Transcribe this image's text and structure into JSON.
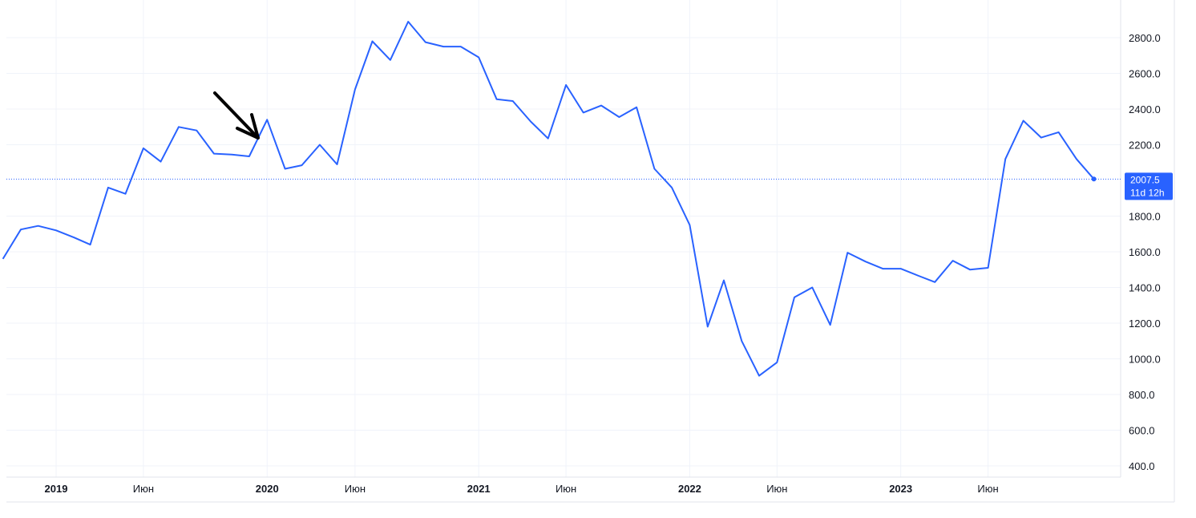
{
  "colors": {
    "line": "#2962ff",
    "grid": "#f0f3fa",
    "badge": "#2962ff",
    "text": "#131722",
    "arrow": "#000000"
  },
  "chart_data": {
    "type": "line",
    "grid": true,
    "ylim": [
      300,
      2950
    ],
    "y_ticks": [
      400,
      600,
      800,
      1000,
      1200,
      1400,
      1600,
      1800,
      2200,
      2400,
      2600,
      2800
    ],
    "y_tick_labels": [
      "400.0",
      "600.0",
      "800.0",
      "1000.0",
      "1200.0",
      "1400.0",
      "1600.0",
      "1800.0",
      "2200.0",
      "2400.0",
      "2600.0",
      "2800.0"
    ],
    "x_ticks": [
      {
        "date": "2019-01-01",
        "label": "2019",
        "year": true
      },
      {
        "date": "2019-06-01",
        "label": "Июн",
        "year": false
      },
      {
        "date": "2020-01-01",
        "label": "2020",
        "year": true
      },
      {
        "date": "2020-06-01",
        "label": "Июн",
        "year": false
      },
      {
        "date": "2021-01-01",
        "label": "2021",
        "year": true
      },
      {
        "date": "2021-06-01",
        "label": "Июн",
        "year": false
      },
      {
        "date": "2022-01-01",
        "label": "2022",
        "year": true
      },
      {
        "date": "2022-06-01",
        "label": "Июн",
        "year": false
      },
      {
        "date": "2023-01-01",
        "label": "2023",
        "year": true
      },
      {
        "date": "2023-06-01",
        "label": "Июн",
        "year": false
      }
    ],
    "current_price": {
      "value": 2007.5,
      "label": "2007.5",
      "countdown": "11d 12h"
    },
    "annotation": {
      "type": "arrow",
      "points_to_date": "2019-12-01",
      "direction": "down-right"
    },
    "series": [
      {
        "x": [
          "2018-10-01",
          "2018-11-01",
          "2018-12-01",
          "2019-01-01",
          "2019-02-01",
          "2019-03-01",
          "2019-04-01",
          "2019-05-01",
          "2019-06-01",
          "2019-07-01",
          "2019-08-01",
          "2019-09-01",
          "2019-10-01",
          "2019-11-01",
          "2019-12-01",
          "2020-01-01",
          "2020-02-01",
          "2020-03-01",
          "2020-04-01",
          "2020-05-01",
          "2020-06-01",
          "2020-07-01",
          "2020-08-01",
          "2020-09-01",
          "2020-10-01",
          "2020-11-01",
          "2020-12-01",
          "2021-01-01",
          "2021-02-01",
          "2021-03-01",
          "2021-04-01",
          "2021-05-01",
          "2021-06-01",
          "2021-07-01",
          "2021-08-01",
          "2021-09-01",
          "2021-10-01",
          "2021-11-01",
          "2021-12-01",
          "2022-01-01",
          "2022-02-01",
          "2022-03-01",
          "2022-04-01",
          "2022-05-01",
          "2022-06-01",
          "2022-07-01",
          "2022-08-01",
          "2022-09-01",
          "2022-10-01",
          "2022-11-01",
          "2022-12-01",
          "2023-01-01",
          "2023-02-01",
          "2023-03-01",
          "2023-04-01",
          "2023-05-01",
          "2023-06-01",
          "2023-07-01",
          "2023-08-01",
          "2023-09-01",
          "2023-10-01",
          "2023-11-01",
          "2023-12-01"
        ],
        "values": [
          1560,
          1725,
          1745,
          1720,
          1680,
          1640,
          1960,
          1925,
          2180,
          2105,
          2300,
          2280,
          2150,
          2145,
          2135,
          2340,
          2065,
          2085,
          2200,
          2090,
          2510,
          2780,
          2675,
          2890,
          2775,
          2750,
          2750,
          2690,
          2455,
          2445,
          2330,
          2235,
          2535,
          2380,
          2420,
          2355,
          2410,
          2065,
          1960,
          1750,
          1180,
          1440,
          1100,
          905,
          980,
          1345,
          1400,
          1190,
          1595,
          1545,
          1505,
          1505,
          1465,
          1430,
          1550,
          1500,
          1510,
          2120,
          2335,
          2240,
          2270,
          2120,
          2007.5
        ]
      }
    ]
  }
}
